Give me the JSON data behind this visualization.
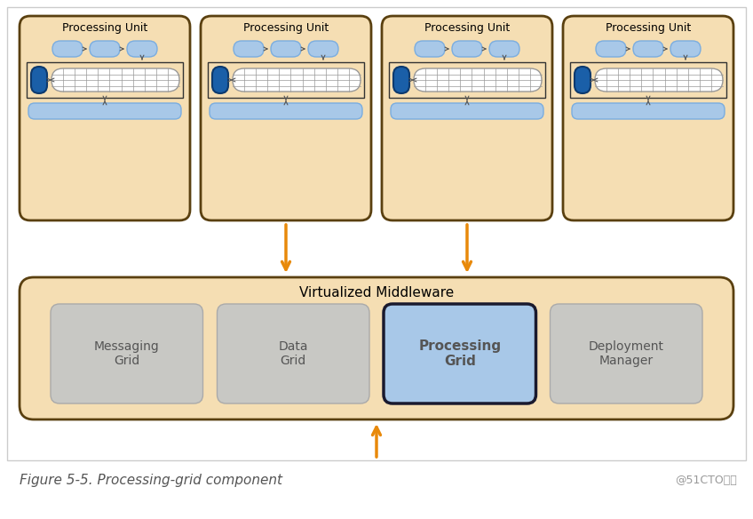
{
  "bg_color": "#ffffff",
  "pu_bg": "#f5deb3",
  "pu_border": "#5a4010",
  "mw_bg": "#f5deb3",
  "mw_border": "#5a4010",
  "blue_light": "#a8c8e8",
  "blue_dark": "#1a5fa8",
  "bar_bg": "#a8c8e8",
  "gray_box": "#c8c8c4",
  "proc_grid_bg": "#a8c8e8",
  "proc_grid_border": "#1a1a2e",
  "arrow_color": "#e8890a",
  "caption_color": "#555555",
  "fig_caption": "Figure 5-5. Processing-grid component",
  "watermark": "@51CTO博客",
  "processing_units": [
    "Processing Unit",
    "Processing Unit",
    "Processing Unit",
    "Processing Unit"
  ],
  "middleware_label": "Virtualized Middleware",
  "grid_boxes": [
    "Messaging\nGrid",
    "Data\nGrid",
    "Processing\nGrid",
    "Deployment\nManager"
  ],
  "outer_border_color": "#cccccc",
  "inner_rect_color": "#888888",
  "grid_line_color": "#999999",
  "pill_edge_color": "#7aade0",
  "cyl_edge_color": "#0d3a6e",
  "arrow_small_color": "#555555"
}
